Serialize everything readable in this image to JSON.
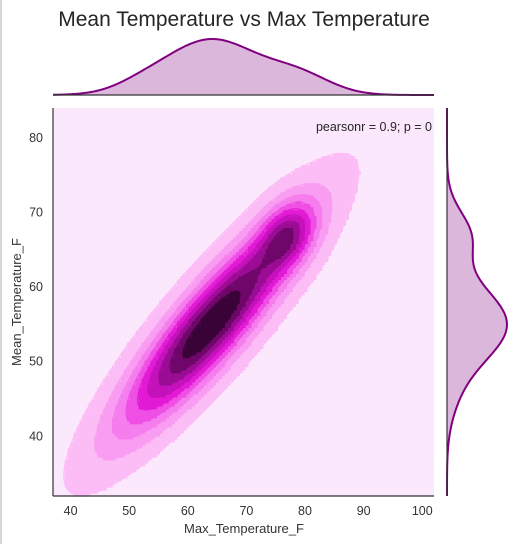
{
  "chart_data": {
    "type": "jointplot-kde",
    "title": "Mean Temperature vs Max Temperature",
    "xlabel": "Max_Temperature_F",
    "ylabel": "Mean_Temperature_F",
    "xlim": [
      37,
      102
    ],
    "ylim": [
      32,
      84
    ],
    "xticks": [
      40,
      50,
      60,
      70,
      80,
      90,
      100
    ],
    "yticks": [
      40,
      50,
      60,
      70,
      80
    ],
    "annotation": "pearsonr = 0.9; p = 0",
    "grid": false,
    "kde_center": {
      "x": 64,
      "y": 55
    },
    "kde_secondary_peak": {
      "x": 77,
      "y": 67
    },
    "contour_levels": 9,
    "marginal_x_peak": 64,
    "marginal_y_peak": 55,
    "colors": {
      "background": "#fce8fc",
      "line": "#800080",
      "fill_marginal": "#dcb7dc",
      "contours": [
        "#fcbcf6",
        "#f99df2",
        "#f57ded",
        "#ef4fe5",
        "#e21ad6",
        "#c411bb",
        "#9b0c94",
        "#6e0769",
        "#3a0338",
        "#000000"
      ]
    }
  }
}
